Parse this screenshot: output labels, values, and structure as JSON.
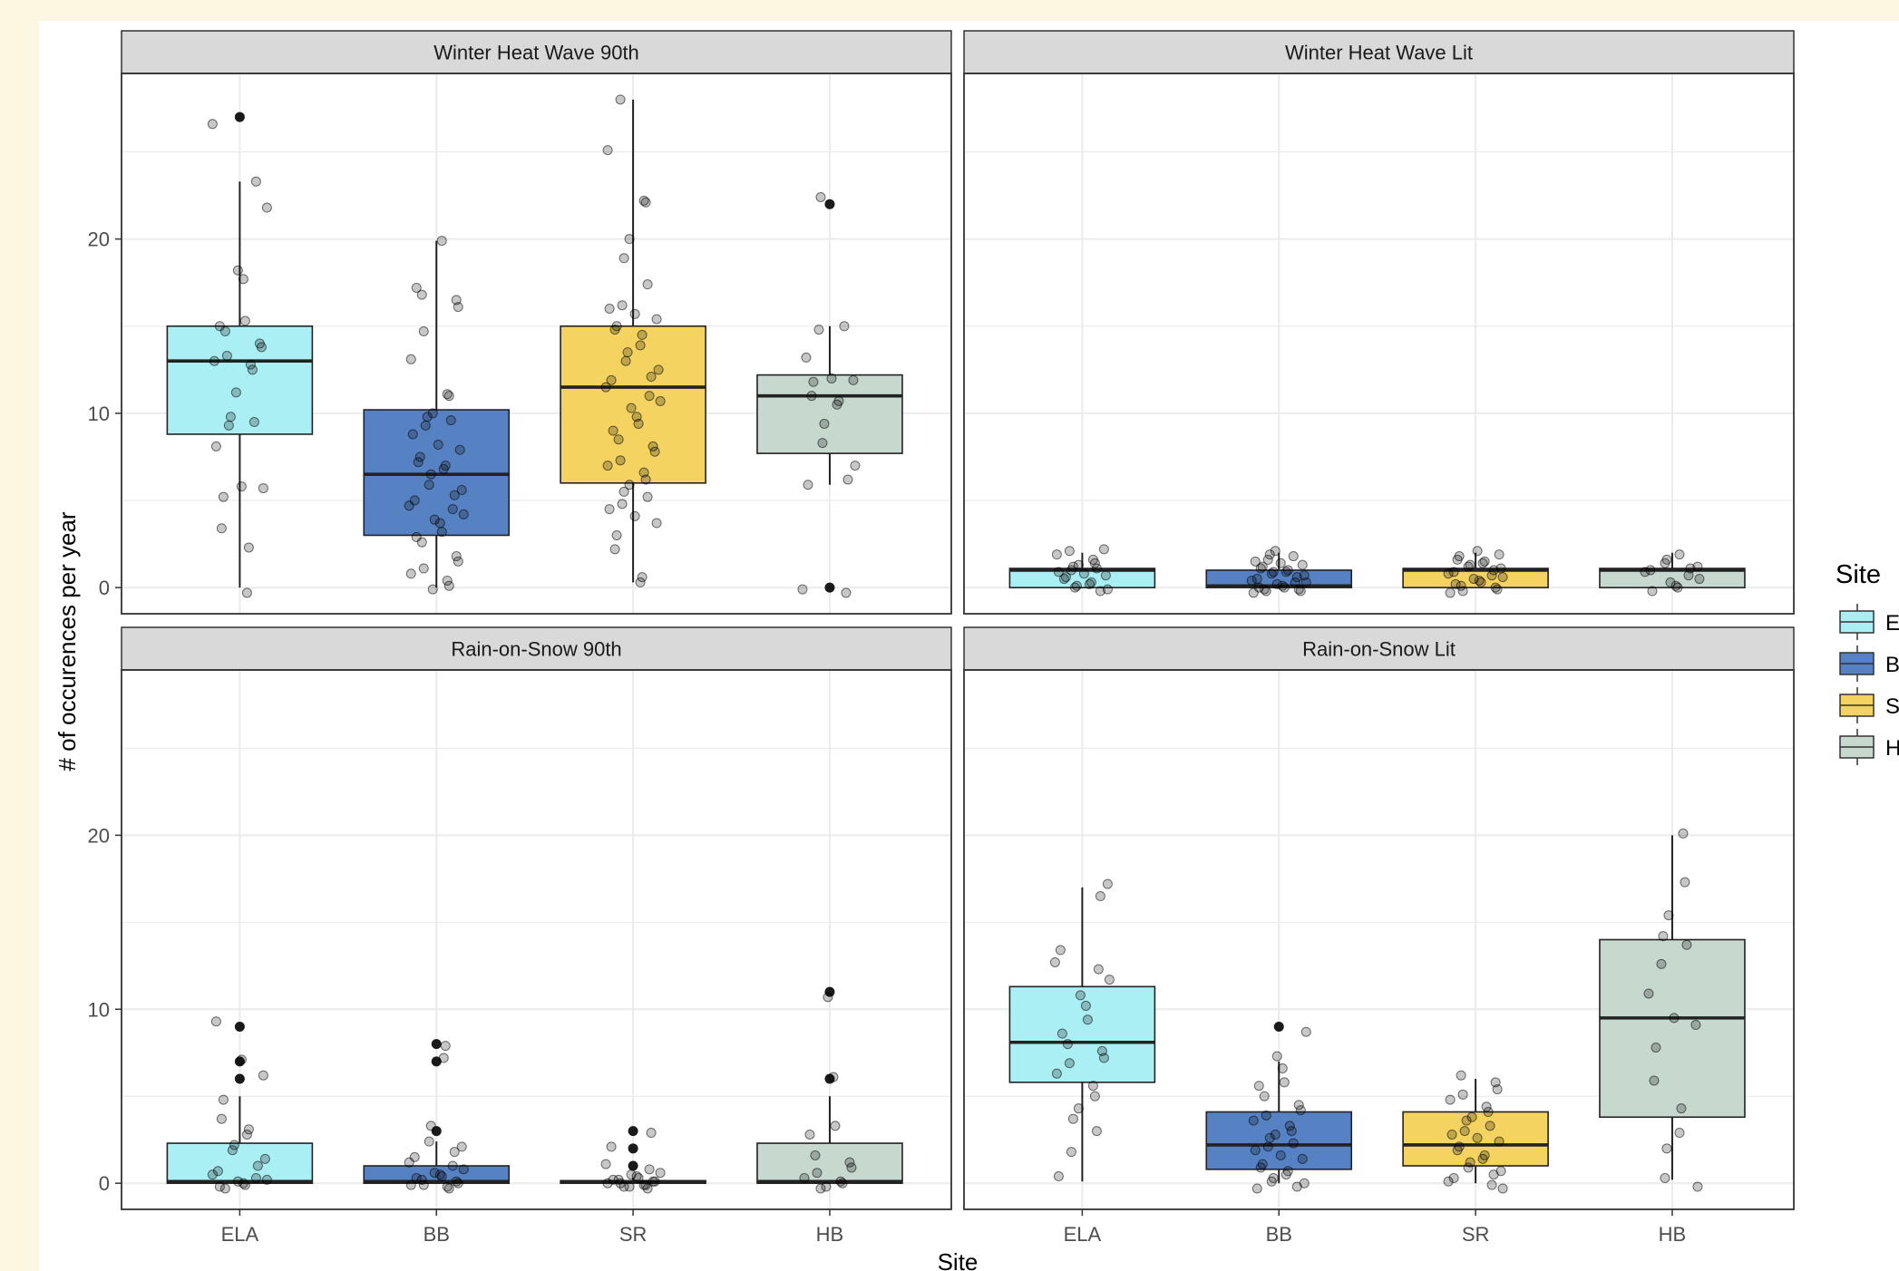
{
  "colors": {
    "background": "#fdf6e0",
    "strip": "#d9d9d9",
    "grid": "#ebebeb",
    "ELA": "#aaeff4",
    "BB": "#5682c3",
    "SR": "#f4d361",
    "HB": "#c7d8cf"
  },
  "chart_data": {
    "type": "boxplot",
    "xlabel": "Site",
    "ylabel": "# of occurences per year",
    "categories": [
      "ELA",
      "BB",
      "SR",
      "HB"
    ],
    "ylim": [
      -1.5,
      29.5
    ],
    "y_ticks": [
      0,
      10,
      20
    ],
    "grid": true,
    "legend": {
      "title": "Site",
      "position": "right",
      "entries": [
        "ELA",
        "BB",
        "SR",
        "HB"
      ],
      "entry_labels": [
        "E",
        "B",
        "S",
        "H"
      ]
    },
    "facets": [
      {
        "title": "Winter Heat Wave 90th",
        "boxes": [
          {
            "site": "ELA",
            "q1": 8.8,
            "median": 13,
            "q3": 15,
            "lower": 0,
            "upper": 23.3,
            "outliers": [
              27
            ],
            "points": [
              26.6,
              23.3,
              21.8,
              18.2,
              17.7,
              15.3,
              15.0,
              14.7,
              14.0,
              13.8,
              13.3,
              13.0,
              12.8,
              12.5,
              11.2,
              9.8,
              9.5,
              9.3,
              8.1,
              5.8,
              5.7,
              5.2,
              3.4,
              2.3,
              -0.3
            ]
          },
          {
            "site": "BB",
            "q1": 3,
            "median": 6.5,
            "q3": 10.2,
            "lower": 0,
            "upper": 19.9,
            "outliers": [],
            "points": [
              19.9,
              17.2,
              16.8,
              16.5,
              16.1,
              14.7,
              13.1,
              11.1,
              11.0,
              10.0,
              9.8,
              9.6,
              9.3,
              8.8,
              8.2,
              7.9,
              7.5,
              7.2,
              7.0,
              6.8,
              6.5,
              5.9,
              5.6,
              5.3,
              5.0,
              4.7,
              4.5,
              4.2,
              3.9,
              3.7,
              3.2,
              2.9,
              2.6,
              1.8,
              1.5,
              1.1,
              0.8,
              0.4,
              0.1,
              -0.1
            ]
          },
          {
            "site": "SR",
            "q1": 6,
            "median": 11.5,
            "q3": 15,
            "lower": 0.3,
            "upper": 28,
            "outliers": [],
            "points": [
              28.0,
              25.1,
              22.2,
              22.1,
              20.0,
              18.9,
              17.4,
              16.2,
              16.0,
              15.7,
              15.4,
              15.0,
              14.8,
              14.5,
              13.9,
              13.5,
              13.0,
              12.5,
              12.1,
              11.9,
              11.5,
              11.0,
              10.7,
              10.3,
              9.8,
              9.4,
              9.0,
              8.5,
              8.1,
              7.8,
              7.3,
              7.0,
              6.6,
              6.2,
              5.9,
              5.5,
              5.2,
              4.8,
              4.5,
              4.1,
              3.7,
              3.0,
              2.2,
              0.6,
              0.3
            ]
          },
          {
            "site": "HB",
            "q1": 7.7,
            "median": 11,
            "q3": 12.2,
            "lower": 5.9,
            "upper": 15,
            "outliers": [
              22,
              0
            ],
            "points": [
              22.4,
              15.0,
              14.8,
              13.2,
              12.0,
              11.9,
              11.8,
              11.0,
              10.7,
              10.5,
              9.4,
              8.3,
              7.0,
              6.2,
              5.9,
              -0.1,
              -0.3
            ]
          }
        ]
      },
      {
        "title": "Winter Heat Wave Lit",
        "boxes": [
          {
            "site": "ELA",
            "q1": 0,
            "median": 1,
            "q3": 1.1,
            "lower": 0,
            "upper": 2,
            "outliers": [],
            "points": [
              2.2,
              2.1,
              1.9,
              1.6,
              1.4,
              1.3,
              1.2,
              1.1,
              1.0,
              0.9,
              0.8,
              0.7,
              0.6,
              0.5,
              0.3,
              0.2,
              0.1,
              0.0,
              -0.1,
              -0.2
            ]
          },
          {
            "site": "BB",
            "q1": 0,
            "median": 0.1,
            "q3": 1,
            "lower": 0,
            "upper": 2,
            "outliers": [],
            "points": [
              2.1,
              1.9,
              1.8,
              1.6,
              1.5,
              1.4,
              1.3,
              1.2,
              1.1,
              1.0,
              0.9,
              0.9,
              0.8,
              0.7,
              0.6,
              0.5,
              0.4,
              0.3,
              0.3,
              0.2,
              0.1,
              0.0,
              0.0,
              -0.1,
              -0.1,
              -0.2,
              -0.2,
              -0.3
            ]
          },
          {
            "site": "SR",
            "q1": 0,
            "median": 1,
            "q3": 1.1,
            "lower": 0,
            "upper": 2,
            "outliers": [],
            "points": [
              2.1,
              1.9,
              1.8,
              1.6,
              1.5,
              1.4,
              1.3,
              1.2,
              1.1,
              1.0,
              0.9,
              0.8,
              0.7,
              0.6,
              0.5,
              0.4,
              0.3,
              0.2,
              0.1,
              0.0,
              -0.1,
              -0.2,
              -0.3
            ]
          },
          {
            "site": "HB",
            "q1": 0,
            "median": 1,
            "q3": 1.1,
            "lower": 0,
            "upper": 2,
            "outliers": [],
            "points": [
              1.9,
              1.6,
              1.4,
              1.2,
              1.1,
              1.0,
              0.9,
              0.7,
              0.5,
              0.3,
              0.1,
              0.0,
              -0.2
            ]
          }
        ]
      },
      {
        "title": "Rain-on-Snow 90th",
        "boxes": [
          {
            "site": "ELA",
            "q1": 0,
            "median": 0.1,
            "q3": 2.3,
            "lower": 0,
            "upper": 5,
            "outliers": [
              9,
              7,
              6
            ],
            "points": [
              9.3,
              7.1,
              6.2,
              4.8,
              3.7,
              3.1,
              2.8,
              2.2,
              1.9,
              1.4,
              1.0,
              0.7,
              0.5,
              0.3,
              0.2,
              0.1,
              0.0,
              -0.1,
              -0.2,
              -0.3
            ]
          },
          {
            "site": "BB",
            "q1": 0,
            "median": 0.1,
            "q3": 1,
            "lower": 0,
            "upper": 2.4,
            "outliers": [
              8,
              7,
              3
            ],
            "points": [
              7.9,
              7.2,
              3.3,
              2.4,
              2.1,
              1.8,
              1.5,
              1.2,
              1.0,
              0.8,
              0.6,
              0.5,
              0.4,
              0.3,
              0.2,
              0.1,
              0.0,
              -0.1,
              -0.1,
              -0.2,
              -0.3
            ]
          },
          {
            "site": "SR",
            "q1": 0,
            "median": 0.05,
            "q3": 0.15,
            "lower": 0,
            "upper": 0.3,
            "outliers": [
              3,
              2,
              1
            ],
            "points": [
              2.9,
              2.1,
              1.1,
              0.8,
              0.6,
              0.5,
              0.4,
              0.3,
              0.2,
              0.2,
              0.1,
              0.1,
              0.0,
              0.0,
              -0.1,
              -0.1,
              -0.2,
              -0.2,
              -0.3
            ]
          },
          {
            "site": "HB",
            "q1": 0,
            "median": 0.1,
            "q3": 2.3,
            "lower": 0,
            "upper": 5,
            "outliers": [
              11,
              6
            ],
            "points": [
              10.7,
              6.1,
              3.3,
              2.8,
              1.6,
              1.2,
              0.9,
              0.6,
              0.3,
              0.1,
              0.0,
              -0.2,
              -0.3
            ]
          }
        ]
      },
      {
        "title": "Rain-on-Snow Lit",
        "boxes": [
          {
            "site": "ELA",
            "q1": 5.8,
            "median": 8.1,
            "q3": 11.3,
            "lower": 0.1,
            "upper": 17,
            "outliers": [],
            "points": [
              17.2,
              16.5,
              13.4,
              12.7,
              12.3,
              11.7,
              10.8,
              10.2,
              9.4,
              8.6,
              8.0,
              7.6,
              7.2,
              6.9,
              6.3,
              5.6,
              5.0,
              4.3,
              3.7,
              3.0,
              1.8,
              0.4
            ]
          },
          {
            "site": "BB",
            "q1": 0.8,
            "median": 2.2,
            "q3": 4.1,
            "lower": 0,
            "upper": 7,
            "outliers": [
              9
            ],
            "points": [
              8.7,
              7.3,
              6.6,
              5.8,
              5.6,
              5.0,
              4.5,
              4.2,
              3.9,
              3.6,
              3.3,
              3.0,
              2.8,
              2.6,
              2.3,
              2.1,
              1.9,
              1.6,
              1.4,
              1.1,
              0.9,
              0.7,
              0.5,
              0.3,
              0.1,
              0.0,
              -0.2,
              -0.3
            ]
          },
          {
            "site": "SR",
            "q1": 1,
            "median": 2.2,
            "q3": 4.1,
            "lower": 0,
            "upper": 6,
            "outliers": [],
            "points": [
              6.2,
              5.8,
              5.4,
              5.1,
              4.8,
              4.4,
              4.1,
              3.8,
              3.6,
              3.3,
              3.0,
              2.8,
              2.6,
              2.4,
              2.1,
              1.9,
              1.6,
              1.4,
              1.2,
              0.9,
              0.7,
              0.5,
              0.3,
              0.1,
              -0.1,
              -0.3
            ]
          },
          {
            "site": "HB",
            "q1": 3.8,
            "median": 9.5,
            "q3": 14,
            "lower": 0.2,
            "upper": 20,
            "outliers": [],
            "points": [
              20.1,
              17.3,
              15.4,
              14.2,
              13.7,
              12.6,
              10.9,
              9.5,
              9.1,
              7.8,
              5.9,
              4.3,
              2.9,
              2.0,
              0.3,
              -0.2
            ]
          }
        ]
      }
    ]
  }
}
